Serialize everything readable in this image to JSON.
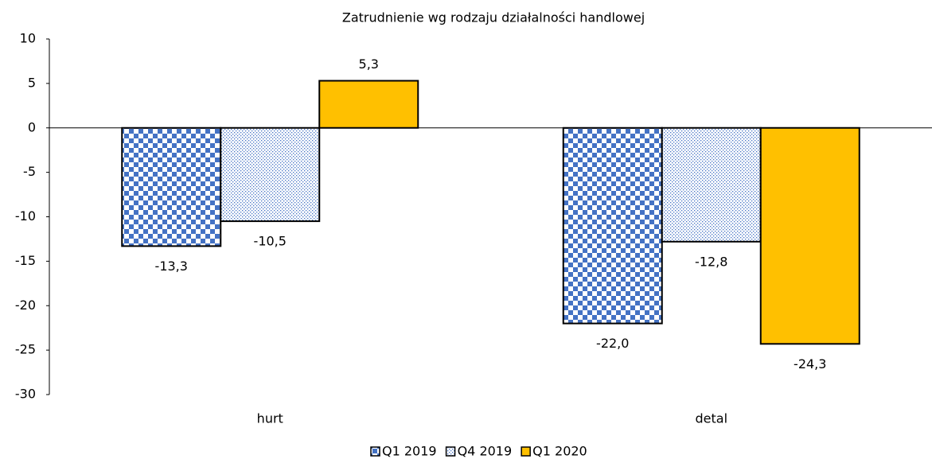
{
  "chart_data": {
    "type": "bar",
    "title": "Zatrudnienie wg rodzaju działalności handlowej",
    "categories": [
      "hurt",
      "detal"
    ],
    "series": [
      {
        "name": "Q1 2019",
        "color": "#4472c4",
        "pattern": "checker",
        "values": [
          -13.3,
          -22.0
        ],
        "value_labels": [
          "-13,3",
          "-22,0"
        ]
      },
      {
        "name": "Q4 2019",
        "color": "#4472c4",
        "pattern": "dots",
        "values": [
          -10.5,
          -12.8
        ],
        "value_labels": [
          "-10,5",
          "-12,8"
        ]
      },
      {
        "name": "Q1 2020",
        "color": "#ffc000",
        "pattern": "solid",
        "values": [
          5.3,
          -24.3
        ],
        "value_labels": [
          "5,3",
          "-24,3"
        ]
      }
    ],
    "ylim": [
      -30,
      10
    ],
    "yticks": [
      -30,
      -25,
      -20,
      -15,
      -10,
      -5,
      0,
      5,
      10
    ],
    "grid": false,
    "legend": "bottom"
  }
}
